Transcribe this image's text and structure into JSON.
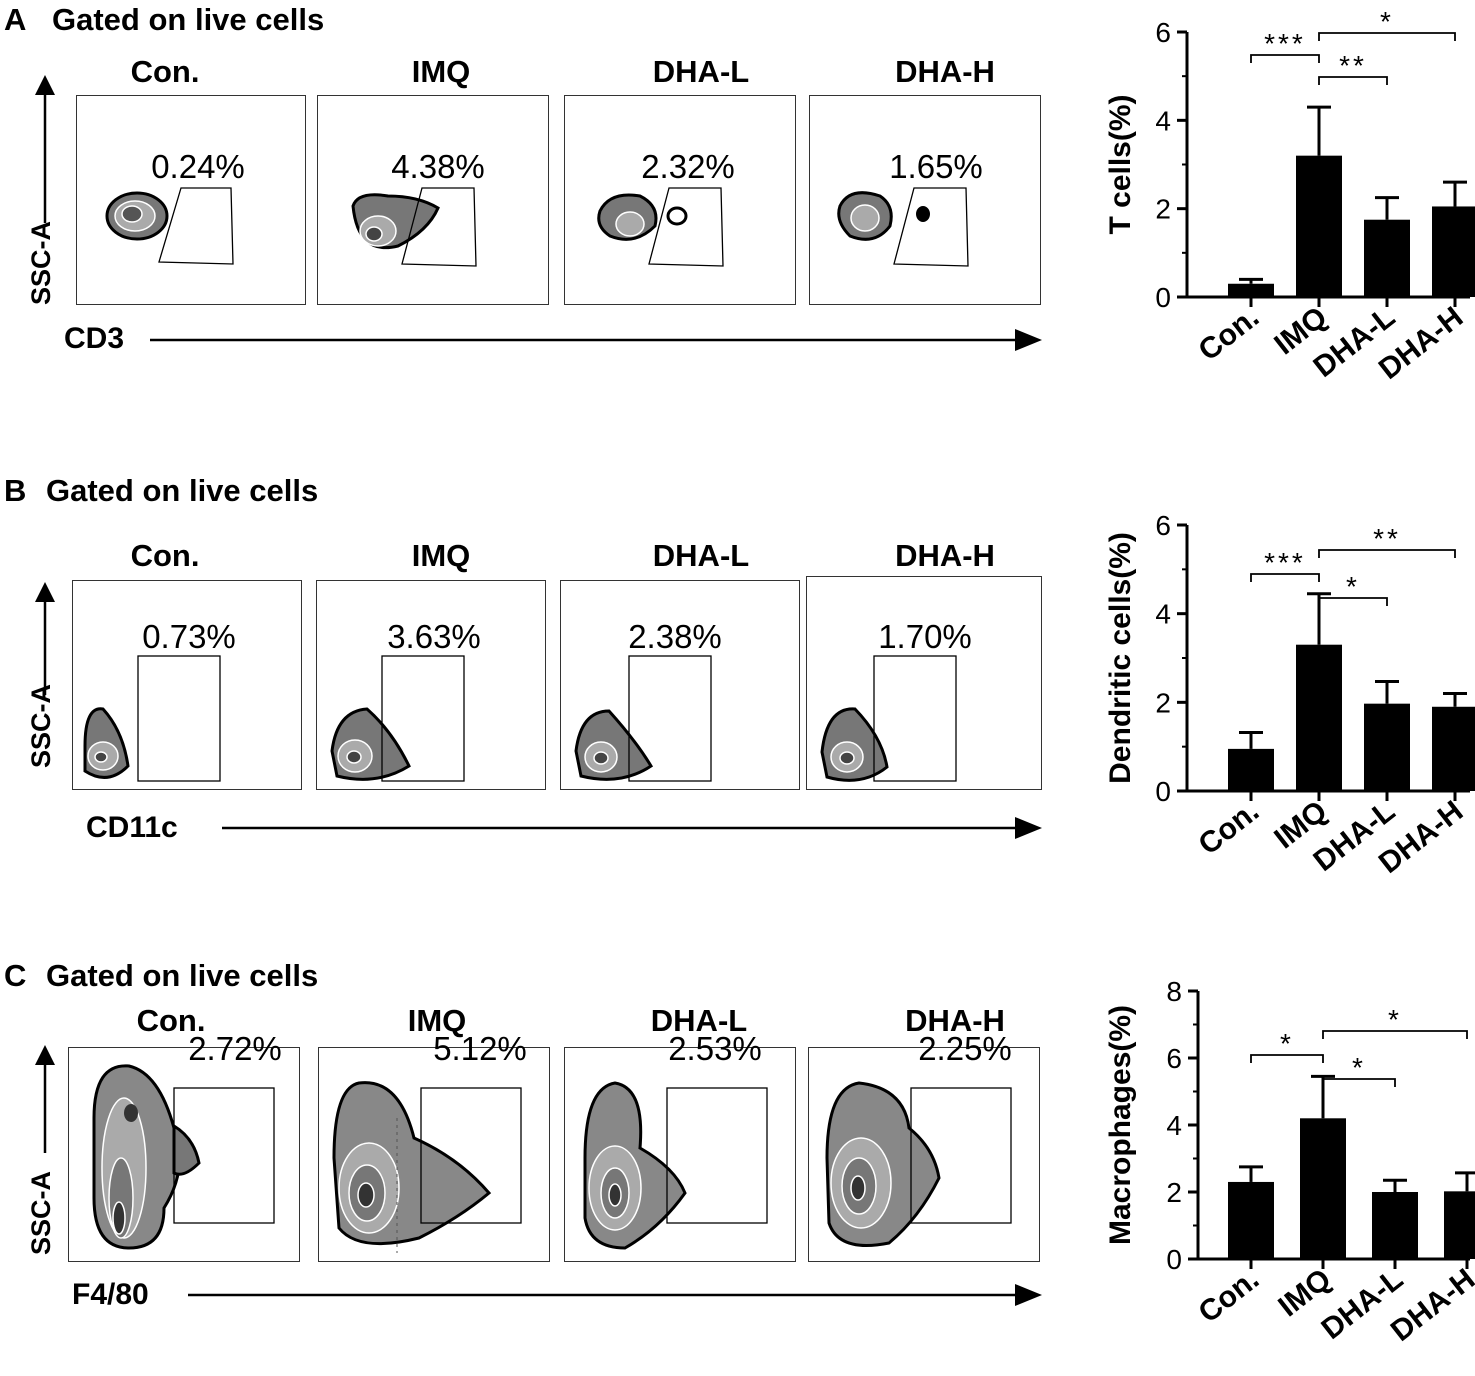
{
  "panels": [
    {
      "letter": "A",
      "gate_title": "Gated on live cells",
      "y_marker": "SSC-A",
      "x_marker": "CD3",
      "groups": [
        "Con.",
        "IMQ",
        "DHA-L",
        "DHA-H"
      ],
      "percentages": [
        "0.24%",
        "4.38%",
        "2.32%",
        "1.65%"
      ]
    },
    {
      "letter": "B",
      "gate_title": "Gated on live cells",
      "y_marker": "SSC-A",
      "x_marker": "CD11c",
      "groups": [
        "Con.",
        "IMQ",
        "DHA-L",
        "DHA-H"
      ],
      "percentages": [
        "0.73%",
        "3.63%",
        "2.38%",
        "1.70%"
      ]
    },
    {
      "letter": "C",
      "gate_title": "Gated on live cells",
      "y_marker": "SSC-A",
      "x_marker": "F4/80",
      "groups": [
        "Con.",
        "IMQ",
        "DHA-L",
        "DHA-H"
      ],
      "percentages": [
        "2.72%",
        "5.12%",
        "2.53%",
        "2.25%"
      ]
    }
  ],
  "chart_data": [
    {
      "type": "bar",
      "ylabel": "T cells(%)",
      "categories": [
        "Con.",
        "IMQ",
        "DHA-L",
        "DHA-H"
      ],
      "values": [
        0.3,
        3.2,
        1.75,
        2.05
      ],
      "errors": [
        0.1,
        1.1,
        0.5,
        0.55
      ],
      "ylim": [
        0,
        6
      ],
      "yticks": [
        0,
        2,
        4,
        6
      ],
      "significance": [
        {
          "from": 0,
          "to": 1,
          "label": "***"
        },
        {
          "from": 1,
          "to": 2,
          "label": "**"
        },
        {
          "from": 1,
          "to": 3,
          "label": "*"
        }
      ]
    },
    {
      "type": "bar",
      "ylabel": "Dendritic cells(%)",
      "categories": [
        "Con.",
        "IMQ",
        "DHA-L",
        "DHA-H"
      ],
      "values": [
        0.95,
        3.3,
        1.97,
        1.9
      ],
      "errors": [
        0.37,
        1.15,
        0.5,
        0.3
      ],
      "ylim": [
        0,
        6
      ],
      "yticks": [
        0,
        2,
        4,
        6
      ],
      "significance": [
        {
          "from": 0,
          "to": 1,
          "label": "***"
        },
        {
          "from": 1,
          "to": 2,
          "label": "*"
        },
        {
          "from": 1,
          "to": 3,
          "label": "**"
        }
      ]
    },
    {
      "type": "bar",
      "ylabel": "Macrophages(%)",
      "categories": [
        "Con.",
        "IMQ",
        "DHA-L",
        "DHA-H"
      ],
      "values": [
        2.3,
        4.2,
        2.0,
        2.02
      ],
      "errors": [
        0.45,
        1.25,
        0.35,
        0.55
      ],
      "ylim": [
        0,
        8
      ],
      "yticks": [
        0,
        2,
        4,
        6,
        8
      ],
      "significance": [
        {
          "from": 0,
          "to": 1,
          "label": "*"
        },
        {
          "from": 1,
          "to": 2,
          "label": "*"
        },
        {
          "from": 1,
          "to": 3,
          "label": "*"
        }
      ]
    }
  ]
}
